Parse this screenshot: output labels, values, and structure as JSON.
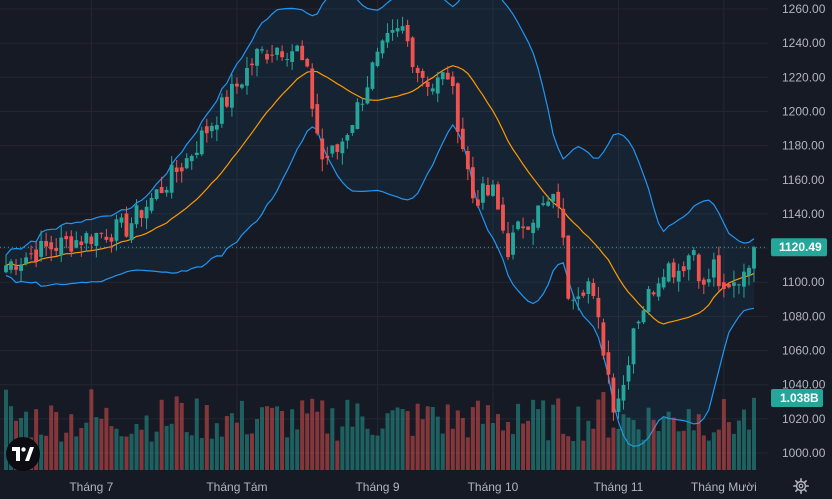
{
  "chart_data": {
    "type": "candlestick",
    "series_name": "Price",
    "y_axis": {
      "range": [
        990,
        1265
      ],
      "ticks": [
        1260,
        1240,
        1220,
        1200,
        1180,
        1160,
        1140,
        1120,
        1100,
        1080,
        1060,
        1040,
        1020,
        1000
      ],
      "tick_labels": [
        "1260.00",
        "1240.00",
        "1220.00",
        "1200.00",
        "1180.00",
        "1160.00",
        "1140.00",
        "1120.00",
        "1100.00",
        "1080.00",
        "1060.00",
        "1040.00",
        "1020.00",
        "1000.00"
      ]
    },
    "x_axis": {
      "labels": [
        "Tháng 7",
        "Tháng Tám",
        "Tháng 9",
        "Tháng 10",
        "Tháng 11",
        "Tháng Mười"
      ],
      "label_bar_index": [
        17,
        46,
        74,
        97,
        122,
        143
      ]
    },
    "last_price": 1120.49,
    "last_price_label": "1120.49",
    "last_volume_label": "1.038B",
    "anchors": [
      {
        "i": 0,
        "close": 1110
      },
      {
        "i": 6,
        "close": 1118
      },
      {
        "i": 12,
        "close": 1123
      },
      {
        "i": 18,
        "close": 1128
      },
      {
        "i": 24,
        "close": 1132
      },
      {
        "i": 30,
        "close": 1152
      },
      {
        "i": 36,
        "close": 1172
      },
      {
        "i": 42,
        "close": 1198
      },
      {
        "i": 46,
        "close": 1215
      },
      {
        "i": 50,
        "close": 1233
      },
      {
        "i": 54,
        "close": 1238
      },
      {
        "i": 58,
        "close": 1236
      },
      {
        "i": 60,
        "close": 1220
      },
      {
        "i": 63,
        "close": 1172
      },
      {
        "i": 66,
        "close": 1177
      },
      {
        "i": 70,
        "close": 1202
      },
      {
        "i": 73,
        "close": 1225
      },
      {
        "i": 76,
        "close": 1240
      },
      {
        "i": 79,
        "close": 1248
      },
      {
        "i": 82,
        "close": 1225
      },
      {
        "i": 85,
        "close": 1215
      },
      {
        "i": 88,
        "close": 1222
      },
      {
        "i": 90,
        "close": 1195
      },
      {
        "i": 93,
        "close": 1150
      },
      {
        "i": 97,
        "close": 1152
      },
      {
        "i": 100,
        "close": 1120
      },
      {
        "i": 103,
        "close": 1135
      },
      {
        "i": 106,
        "close": 1142
      },
      {
        "i": 110,
        "close": 1148
      },
      {
        "i": 112,
        "close": 1095
      },
      {
        "i": 116,
        "close": 1100
      },
      {
        "i": 119,
        "close": 1062
      },
      {
        "i": 121,
        "close": 1030
      },
      {
        "i": 123,
        "close": 1040
      },
      {
        "i": 125,
        "close": 1075
      },
      {
        "i": 128,
        "close": 1092
      },
      {
        "i": 131,
        "close": 1110
      },
      {
        "i": 134,
        "close": 1108
      },
      {
        "i": 137,
        "close": 1120
      },
      {
        "i": 139,
        "close": 1095
      },
      {
        "i": 141,
        "close": 1110
      },
      {
        "i": 143,
        "close": 1090
      },
      {
        "i": 146,
        "close": 1102
      },
      {
        "i": 149,
        "close": 1120.49
      }
    ],
    "bar_count": 150,
    "volume_axis_max": "2.2B",
    "indicators": [
      "Bollinger Bands (20,2)",
      "SMA 20"
    ]
  },
  "colors": {
    "background": "#161a25",
    "up": "#26a69a",
    "down": "#ef5350",
    "band": "#2196f3",
    "band_fill": "rgba(33,150,243,0.07)",
    "basis": "#ff9800",
    "grid": "#242733",
    "last_price_bg": "#26a69a",
    "volume_bg": "#26a69a"
  },
  "icons": {
    "logo": "tradingview-logo-icon",
    "settings": "gear-icon"
  }
}
